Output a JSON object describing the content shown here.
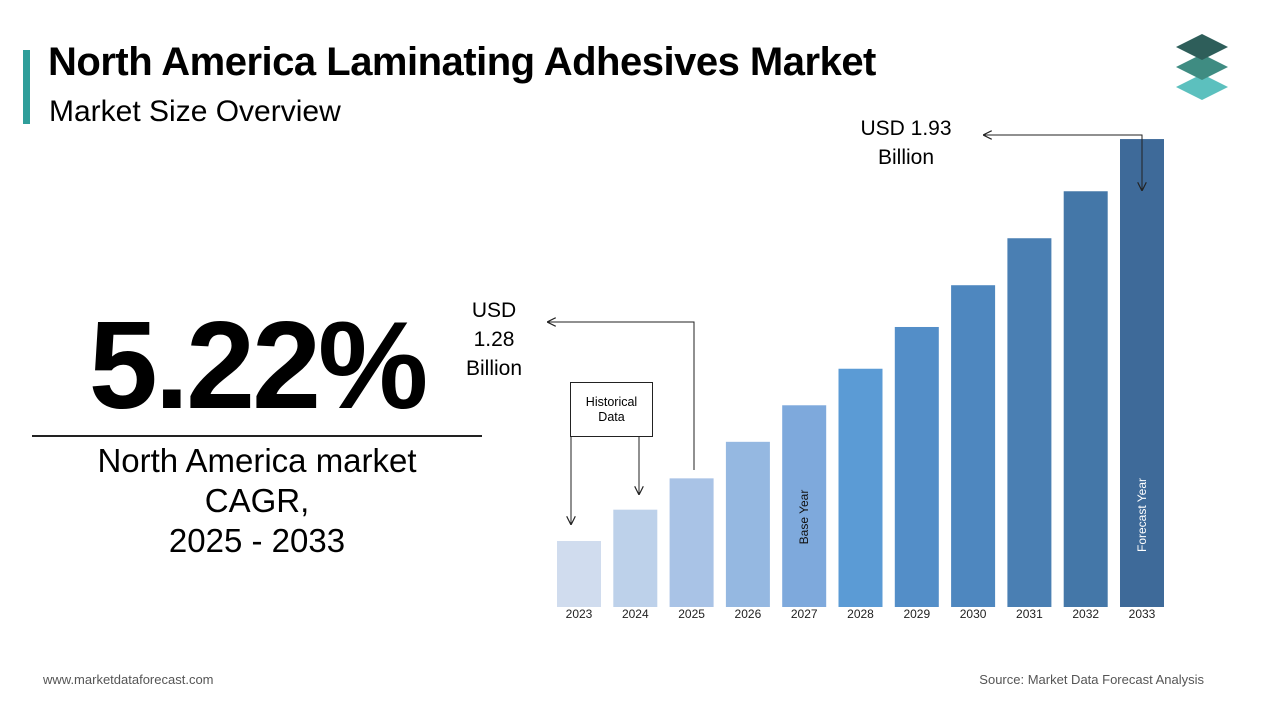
{
  "header": {
    "title": "North America Laminating Adhesives Market",
    "subtitle": "Market Size Overview"
  },
  "kpi": {
    "value": "5.22%",
    "caption_lines": [
      "North America market",
      "CAGR,",
      "2025 - 2033"
    ]
  },
  "annotations": {
    "start_value": [
      "USD",
      "1.28",
      "Billion"
    ],
    "end_value": [
      "USD 1.93",
      "Billion"
    ],
    "historical_box": [
      "Historical",
      "Data"
    ],
    "base_year_label": "Base Year",
    "forecast_year_label": "Forecast Year"
  },
  "footer": {
    "website": "www.marketdataforecast.com",
    "source": "Source: Market Data Forecast Analysis"
  },
  "colors": {
    "accent": "#2f9e9a",
    "bars": [
      "#d0dcee",
      "#bdd1ea",
      "#a9c3e6",
      "#95b8e1",
      "#7ea9dc",
      "#5b9bd5",
      "#538ec8",
      "#4e87bf",
      "#4a7fb3",
      "#4477a8",
      "#3e6a99"
    ]
  },
  "chart_data": {
    "type": "bar",
    "categories": [
      "2023",
      "2024",
      "2025",
      "2026",
      "2027",
      "2028",
      "2029",
      "2030",
      "2031",
      "2032",
      "2033"
    ],
    "values": [
      1.16,
      1.22,
      1.28,
      1.35,
      1.42,
      1.49,
      1.57,
      1.65,
      1.74,
      1.83,
      1.93
    ],
    "unit": "USD Billion",
    "ylim": [
      1.0,
      2.0
    ],
    "grid": false,
    "legend": "none"
  }
}
